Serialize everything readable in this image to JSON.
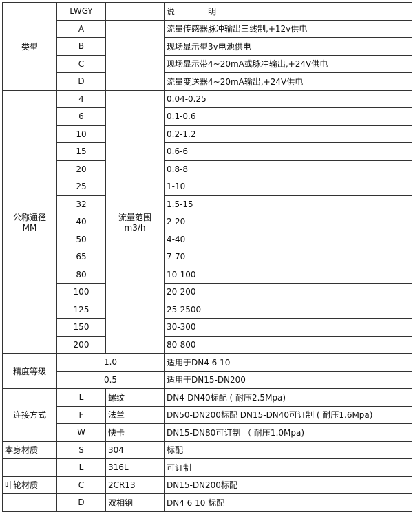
{
  "header": {
    "code": "LWGY",
    "description": "说　　　　明"
  },
  "type": {
    "label": "类型",
    "rows": [
      {
        "code": "A",
        "desc": "流量传感器脉冲输出三线制,+12v供电"
      },
      {
        "code": "B",
        "desc": "现场显示型3v电池供电"
      },
      {
        "code": "C",
        "desc": "现场显示带4~20mA或脉冲输出,+24V供电"
      },
      {
        "code": "D",
        "desc": "流量变送器4~20mA输出,+24V供电"
      }
    ]
  },
  "diameter": {
    "label_line1": "公称通径",
    "label_line2": "MM",
    "range_label_line1": "流量范围",
    "range_label_line2": "m3/h",
    "rows": [
      {
        "dn": "4",
        "range": "0.04-0.25"
      },
      {
        "dn": "6",
        "range": "0.1-0.6"
      },
      {
        "dn": "10",
        "range": "0.2-1.2"
      },
      {
        "dn": "15",
        "range": "0.6-6"
      },
      {
        "dn": "20",
        "range": "0.8-8"
      },
      {
        "dn": "25",
        "range": "1-10"
      },
      {
        "dn": "32",
        "range": "1.5-15"
      },
      {
        "dn": "40",
        "range": "2-20"
      },
      {
        "dn": "50",
        "range": "4-40"
      },
      {
        "dn": "65",
        "range": "7-70"
      },
      {
        "dn": "80",
        "range": "10-100"
      },
      {
        "dn": "100",
        "range": "20-200"
      },
      {
        "dn": "125",
        "range": "25-2500"
      },
      {
        "dn": "150",
        "range": "30-300"
      },
      {
        "dn": "200",
        "range": "80-800"
      }
    ]
  },
  "accuracy": {
    "label": "精度等级",
    "rows": [
      {
        "grade": "1.0",
        "desc": "适用于DN4  6  10"
      },
      {
        "grade": "0.5",
        "desc": "适用于DN15-DN200"
      }
    ]
  },
  "connection": {
    "label": "连接方式",
    "rows": [
      {
        "code": "L",
        "name": "螺纹",
        "desc": "DN4-DN40标配 ( 耐压2.5Mpa)"
      },
      {
        "code": "F",
        "name": "法兰",
        "desc": "DN50-DN200标配 DN15-DN40可订制 ( 耐压1.6Mpa)"
      },
      {
        "code": "W",
        "name": "快卡",
        "desc": "DN15-DN80可订制 （ 耐压1.0Mpa)"
      }
    ]
  },
  "body_material": {
    "label": "本身材质",
    "rows": [
      {
        "code": "S",
        "name": "304",
        "desc": "标配"
      },
      {
        "code": "L",
        "name": "316L",
        "desc": "可订制"
      }
    ]
  },
  "impeller_material": {
    "label": "叶轮材质",
    "rows": [
      {
        "code": "C",
        "name": "2CR13",
        "desc": "DN15-DN200标配"
      },
      {
        "code": "D",
        "name": "双相钢",
        "desc": "DN4 6 10 标配"
      }
    ]
  }
}
